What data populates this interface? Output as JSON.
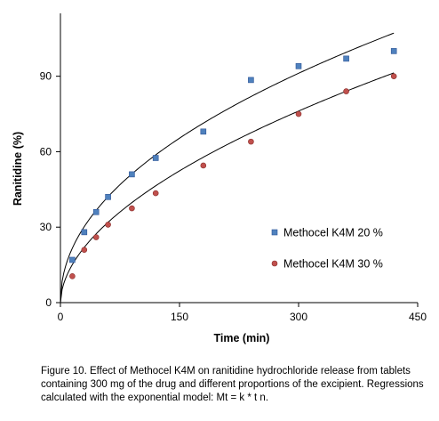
{
  "chart_data": {
    "type": "scatter",
    "xlabel": "Time (min)",
    "ylabel": "Ranitidine (%)",
    "xlim": [
      0,
      450
    ],
    "ylim": [
      0,
      115
    ],
    "xticks": [
      0,
      150,
      300,
      450
    ],
    "yticks": [
      0,
      30,
      60,
      90
    ],
    "grid": false,
    "legend_position": "center-right",
    "series": [
      {
        "name": "Methocel K4M 20 %",
        "marker": "square",
        "color": "#4f81bd",
        "x": [
          15,
          30,
          45,
          60,
          90,
          120,
          180,
          240,
          300,
          360,
          420
        ],
        "y": [
          17,
          28,
          36,
          42,
          51,
          57.5,
          68,
          88.5,
          94,
          97,
          100
        ],
        "fit": {
          "k": 5.9,
          "n": 0.48
        }
      },
      {
        "name": "Methocel K4M 30 %",
        "marker": "circle",
        "color": "#c0504d",
        "x": [
          15,
          30,
          45,
          60,
          90,
          120,
          180,
          240,
          300,
          360,
          420
        ],
        "y": [
          10.5,
          21,
          26,
          31,
          37.5,
          43.5,
          54.5,
          64,
          75,
          84,
          90
        ],
        "fit": {
          "k": 3.5,
          "n": 0.54
        }
      }
    ]
  },
  "caption": "Figure 10. Effect of Methocel K4M on ranitidine hydrochloride release from tablets containing 300 mg of the drug and different proportions of the excipient. Regressions calculated with the exponential model: Mt = k * t n."
}
